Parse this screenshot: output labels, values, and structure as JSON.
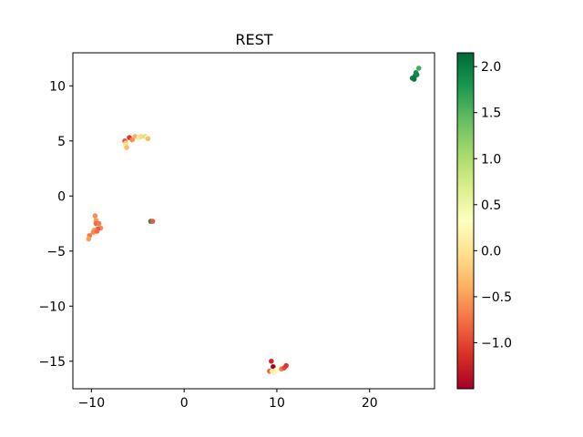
{
  "chart_data": {
    "type": "scatter",
    "title": "REST",
    "xlabel": "",
    "ylabel": "",
    "xlim": [
      -12,
      27
    ],
    "ylim": [
      -17.5,
      13
    ],
    "xticks": [
      -10,
      0,
      10,
      20
    ],
    "yticks": [
      10,
      5,
      0,
      -5,
      -10,
      -15
    ],
    "xtick_labels": [
      "−10",
      "0",
      "10",
      "20"
    ],
    "ytick_labels": [
      "10",
      "5",
      "0",
      "−5",
      "−10",
      "−15"
    ],
    "grid": false,
    "colorbar": {
      "colormap": "RdYlGn",
      "vmin": -1.5,
      "vmax": 2.15,
      "ticks": [
        2.0,
        1.5,
        1.0,
        0.5,
        0.0,
        -0.5,
        -1.0
      ],
      "tick_labels": [
        "2.0",
        "1.5",
        "1.0",
        "0.5",
        "0.0",
        "−0.5",
        "−1.0"
      ]
    },
    "points": [
      {
        "x": 24.6,
        "y": 10.7,
        "c": 1.95
      },
      {
        "x": 24.9,
        "y": 10.9,
        "c": 2.0
      },
      {
        "x": 25.0,
        "y": 11.2,
        "c": 1.85
      },
      {
        "x": 25.3,
        "y": 11.6,
        "c": 1.6
      },
      {
        "x": 24.8,
        "y": 10.6,
        "c": 2.05
      },
      {
        "x": 25.1,
        "y": 11.0,
        "c": 1.9
      },
      {
        "x": -6.4,
        "y": 5.0,
        "c": -0.9
      },
      {
        "x": -6.3,
        "y": 4.8,
        "c": -0.2
      },
      {
        "x": -6.3,
        "y": 4.6,
        "c": 0.0
      },
      {
        "x": -6.2,
        "y": 4.4,
        "c": -0.3
      },
      {
        "x": -5.9,
        "y": 5.3,
        "c": -1.1
      },
      {
        "x": -5.6,
        "y": 5.1,
        "c": -0.6
      },
      {
        "x": -5.3,
        "y": 5.4,
        "c": -0.4
      },
      {
        "x": -4.9,
        "y": 5.3,
        "c": 0.1
      },
      {
        "x": -4.6,
        "y": 5.4,
        "c": -0.1
      },
      {
        "x": -4.2,
        "y": 5.4,
        "c": 0.8
      },
      {
        "x": -4.0,
        "y": 5.3,
        "c": 0.4
      },
      {
        "x": -3.9,
        "y": 5.2,
        "c": -0.3
      },
      {
        "x": -9.6,
        "y": -1.8,
        "c": -0.6
      },
      {
        "x": -9.5,
        "y": -2.2,
        "c": -0.5
      },
      {
        "x": -9.5,
        "y": -2.5,
        "c": -0.8
      },
      {
        "x": -9.2,
        "y": -2.5,
        "c": -0.7
      },
      {
        "x": -9.0,
        "y": -2.9,
        "c": -0.6
      },
      {
        "x": -9.3,
        "y": -3.0,
        "c": -0.9
      },
      {
        "x": -9.7,
        "y": -3.1,
        "c": -0.5
      },
      {
        "x": -9.8,
        "y": -3.3,
        "c": -0.6
      },
      {
        "x": -10.2,
        "y": -3.6,
        "c": -0.7
      },
      {
        "x": -10.3,
        "y": -3.9,
        "c": -0.5
      },
      {
        "x": -9.4,
        "y": -3.2,
        "c": -0.8
      },
      {
        "x": -3.6,
        "y": -2.3,
        "c": 1.9
      },
      {
        "x": -3.4,
        "y": -2.3,
        "c": -0.9
      },
      {
        "x": 9.4,
        "y": -15.0,
        "c": -1.2
      },
      {
        "x": 9.6,
        "y": -15.5,
        "c": -1.5
      },
      {
        "x": 9.2,
        "y": -15.9,
        "c": -0.8
      },
      {
        "x": 9.7,
        "y": -16.0,
        "c": 0.2
      },
      {
        "x": 9.9,
        "y": -15.8,
        "c": 0.3
      },
      {
        "x": 10.5,
        "y": -15.7,
        "c": -0.7
      },
      {
        "x": 10.8,
        "y": -15.6,
        "c": -1.0
      },
      {
        "x": 11.0,
        "y": -15.4,
        "c": -1.1
      },
      {
        "x": 9.5,
        "y": -15.9,
        "c": 0.1
      }
    ]
  }
}
